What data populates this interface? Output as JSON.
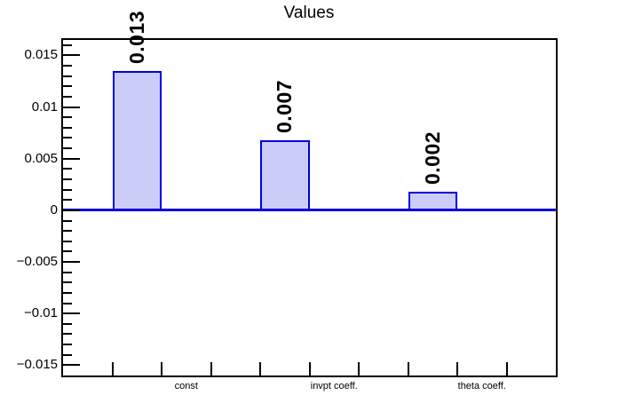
{
  "page": {
    "background": "#ffffff"
  },
  "chart_data": {
    "type": "bar",
    "title": "Values",
    "categories": [
      "const",
      "invpt coeff.",
      "theta coeff."
    ],
    "values": [
      0.0135,
      0.0068,
      0.0018
    ],
    "bar_labels": [
      "0.013",
      "0.007",
      "0.002"
    ],
    "ylim": [
      -0.016,
      0.0165
    ],
    "y_axis": {
      "values": [
        0.015,
        0.01,
        0.005,
        0,
        -0.005,
        -0.01,
        -0.015
      ],
      "labels": [
        "0.015",
        "0.01",
        "0.005",
        "0",
        "−0.005",
        "−0.01",
        "−0.015"
      ],
      "minor_step": 0.001,
      "majors_every": 0.005
    },
    "x_axis": {
      "n_bins": 10,
      "bar_bin_indices": [
        1,
        4,
        7
      ],
      "label_bin_indices": [
        2,
        5,
        8
      ]
    },
    "grid": false,
    "legend": false,
    "colors": {
      "bar_fill": "#ccccf8",
      "bar_border": "#0000e0",
      "zero_line": "#0000e0",
      "frame": "#000000",
      "text": "#000000",
      "background": "#ffffff"
    }
  }
}
